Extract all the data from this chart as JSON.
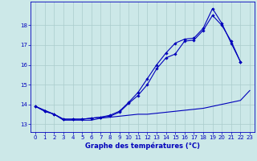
{
  "xlabel": "Graphe des températures (°C)",
  "bg_color": "#cce8e8",
  "grid_color": "#aacccc",
  "line_color": "#0000bb",
  "xlim": [
    -0.5,
    23.5
  ],
  "ylim": [
    12.6,
    19.2
  ],
  "yticks": [
    13,
    14,
    15,
    16,
    17,
    18
  ],
  "xticks": [
    0,
    1,
    2,
    3,
    4,
    5,
    6,
    7,
    8,
    9,
    10,
    11,
    12,
    13,
    14,
    15,
    16,
    17,
    18,
    19,
    20,
    21,
    22,
    23
  ],
  "series_bottom": [
    13.9,
    13.7,
    13.5,
    13.2,
    13.2,
    13.2,
    13.2,
    13.3,
    13.35,
    13.4,
    13.45,
    13.5,
    13.5,
    13.55,
    13.6,
    13.65,
    13.7,
    13.75,
    13.8,
    13.9,
    14.0,
    14.1,
    14.2,
    14.7
  ],
  "series_mid": [
    13.9,
    13.65,
    13.5,
    13.25,
    13.25,
    13.25,
    13.3,
    13.35,
    13.4,
    13.6,
    14.05,
    14.45,
    15.0,
    15.8,
    16.35,
    16.55,
    17.2,
    17.25,
    17.75,
    18.5,
    18.0,
    17.2,
    16.15,
    null
  ],
  "series_top": [
    13.9,
    13.65,
    13.5,
    13.25,
    13.25,
    13.25,
    13.3,
    13.35,
    13.45,
    13.65,
    14.1,
    14.6,
    15.3,
    16.0,
    16.6,
    17.1,
    17.3,
    17.35,
    17.85,
    18.85,
    18.1,
    17.1,
    16.15,
    null
  ],
  "xlabel_fontsize": 6.0,
  "tick_fontsize": 5.0
}
